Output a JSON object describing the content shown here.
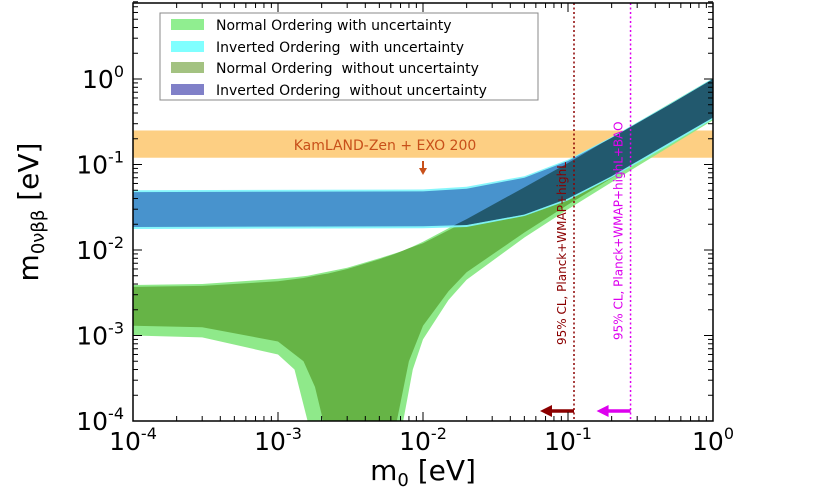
{
  "chart_data": {
    "type": "area",
    "title": "",
    "xlabel": "m0 [eV]",
    "xlabel_main": "m",
    "xlabel_sub": "0",
    "xlabel_unit": " [eV]",
    "ylabel_main": "m",
    "ylabel_sub": "0νββ",
    "ylabel_unit": " [eV]",
    "x_scale": "log",
    "y_scale": "log",
    "xlim": [
      0.0001,
      1
    ],
    "ylim": [
      0.0001,
      8
    ],
    "grid": false,
    "x_tick_labels": [
      {
        "base": "10",
        "exp": "-4",
        "value": 0.0001
      },
      {
        "base": "10",
        "exp": "-3",
        "value": 0.001
      },
      {
        "base": "10",
        "exp": "-2",
        "value": 0.01
      },
      {
        "base": "10",
        "exp": "-1",
        "value": 0.1
      },
      {
        "base": "10",
        "exp": "0",
        "value": 1
      }
    ],
    "y_tick_labels": [
      {
        "base": "10",
        "exp": "-4",
        "value": 0.0001
      },
      {
        "base": "10",
        "exp": "-3",
        "value": 0.001
      },
      {
        "base": "10",
        "exp": "-2",
        "value": 0.01
      },
      {
        "base": "10",
        "exp": "-1",
        "value": 0.1
      },
      {
        "base": "10",
        "exp": "0",
        "value": 1
      }
    ],
    "legend_position": "top-left",
    "series": [
      {
        "name": "Normal Ordering with uncertainty",
        "color": "#8fe98a",
        "legend_color": "#90ee90",
        "points": [
          [
            0.0001,
            0.001,
            0.0039
          ],
          [
            0.0003,
            0.00095,
            0.004
          ],
          [
            0.001,
            0.0006,
            0.0046
          ],
          [
            0.0013,
            0.0004,
            0.0048
          ],
          [
            0.0016,
            0.0001,
            0.005
          ],
          [
            0.0018,
            null,
            0.0052
          ],
          [
            0.003,
            null,
            0.0062
          ],
          [
            0.005,
            null,
            0.008
          ],
          [
            0.0069,
            null,
            0.0095
          ],
          [
            0.0073,
            0.0001,
            0.0098
          ],
          [
            0.0085,
            0.0004,
            0.011
          ],
          [
            0.01,
            0.0009,
            0.0125
          ],
          [
            0.015,
            0.0026,
            0.018
          ],
          [
            0.02,
            0.0045,
            0.023
          ],
          [
            0.05,
            0.014,
            0.054
          ],
          [
            0.1,
            0.03,
            0.104
          ],
          [
            0.3,
            0.095,
            0.31
          ],
          [
            1,
            0.33,
            1.02
          ]
        ]
      },
      {
        "name": "Normal Ordering  without uncertainty",
        "color": "#66b446",
        "legend_color": "#a3c281",
        "points": [
          [
            0.0001,
            0.0013,
            0.0037
          ],
          [
            0.0003,
            0.00125,
            0.0038
          ],
          [
            0.001,
            0.00085,
            0.0043
          ],
          [
            0.0015,
            0.0005,
            0.0047
          ],
          [
            0.0018,
            0.00025,
            0.005
          ],
          [
            0.00205,
            0.0001,
            0.0052
          ],
          [
            0.0022,
            null,
            0.0053
          ],
          [
            0.003,
            null,
            0.006
          ],
          [
            0.005,
            null,
            0.0078
          ],
          [
            0.0063,
            null,
            0.0089
          ],
          [
            0.0066,
            0.0001,
            0.0092
          ],
          [
            0.008,
            0.0005,
            0.0105
          ],
          [
            0.01,
            0.0013,
            0.012
          ],
          [
            0.015,
            0.0033,
            0.017
          ],
          [
            0.02,
            0.0055,
            0.022
          ],
          [
            0.05,
            0.016,
            0.052
          ],
          [
            0.1,
            0.034,
            0.1
          ],
          [
            0.3,
            0.105,
            0.3
          ],
          [
            1,
            0.35,
            1.0
          ]
        ]
      },
      {
        "name": "Inverted Ordering  with uncertainty",
        "color": "#7ff5fb",
        "legend_color": "#80ffff",
        "points": [
          [
            0.0001,
            0.0176,
            0.05
          ],
          [
            0.01,
            0.018,
            0.051
          ],
          [
            0.02,
            0.0186,
            0.055
          ],
          [
            0.05,
            0.025,
            0.073
          ],
          [
            0.1,
            0.038,
            0.114
          ],
          [
            0.2,
            0.07,
            0.21
          ],
          [
            0.5,
            0.17,
            0.51
          ],
          [
            1,
            0.34,
            1.02
          ]
        ]
      },
      {
        "name": "Inverted Ordering  without uncertainty",
        "color": "#3a7cc2",
        "legend_color": "#8080c8",
        "points": [
          [
            0.0001,
            0.0186,
            0.0475
          ],
          [
            0.01,
            0.019,
            0.0485
          ],
          [
            0.02,
            0.0196,
            0.052
          ],
          [
            0.05,
            0.026,
            0.07
          ],
          [
            0.1,
            0.04,
            0.11
          ],
          [
            0.2,
            0.073,
            0.205
          ],
          [
            0.5,
            0.18,
            0.5
          ],
          [
            1,
            0.355,
            1.0
          ]
        ]
      }
    ],
    "annotations": {
      "kamland": {
        "label": "KamLAND-Zen + EXO 200",
        "range": [
          0.12,
          0.25
        ],
        "color": "#fdca75",
        "text_color": "#c8501a",
        "arrow_x": 0.01
      },
      "planck_highL": {
        "label": "95% CL, Planck+WMAP+highL",
        "x": 0.11,
        "color": "#8b0000"
      },
      "planck_highL_bao": {
        "label": "95% CL, Planck+WMAP+highL+BAO",
        "x": 0.27,
        "color": "#dd00ee"
      }
    }
  }
}
